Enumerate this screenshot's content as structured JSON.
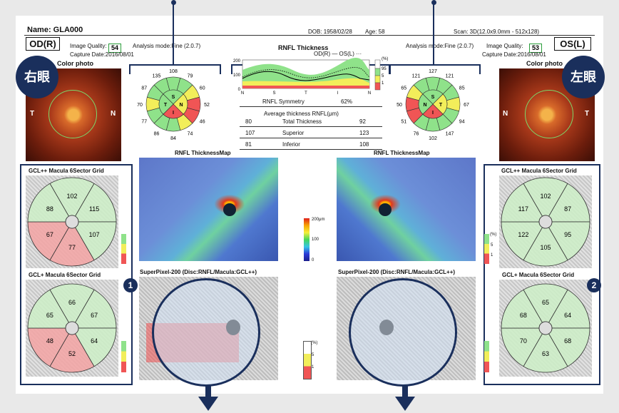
{
  "header": {
    "name": "Name: GLA000",
    "dob": "DOB: 1958/02/28",
    "age": "Age: 58",
    "scan": "Scan: 3D(12.0x9.0mm - 512x128)"
  },
  "right_eye": {
    "label": "OD(R)",
    "quality_label": "Image Quality:",
    "quality": "54",
    "analysis_mode": "Analysis mode:Fine (2.0.7)",
    "capture_date": "Capture Date:2016/08/01",
    "badge": "右眼",
    "photo_title": "Color photo",
    "photo_left": "T",
    "photo_right": "N"
  },
  "left_eye": {
    "label": "OS(L)",
    "quality_label": "Image Quality:",
    "quality": "53",
    "analysis_mode": "Analysis mode:Fine (2.0.7)",
    "capture_date": "Capture Date:2016/08/01",
    "badge": "左眼",
    "photo_title": "Color photo",
    "photo_left": "N",
    "photo_right": "T"
  },
  "clock_od": {
    "outer": [
      "108",
      "79",
      "60",
      "52",
      "46",
      "74",
      "84",
      "86",
      "77",
      "70",
      "87",
      "135"
    ],
    "quads": [
      "S",
      "N",
      "I",
      "T"
    ]
  },
  "clock_os": {
    "outer": [
      "127",
      "121",
      "85",
      "67",
      "94",
      "147",
      "102",
      "76",
      "51",
      "50",
      "65",
      "121"
    ],
    "quads": [
      "S",
      "T",
      "I",
      "N"
    ]
  },
  "rnfl": {
    "title": "RNFL Thickness",
    "legend": "OD(R) —   OS(L) ···",
    "y_ticks": [
      "200",
      "100",
      "0"
    ],
    "x_ticks": [
      "N",
      "S",
      "T",
      "I",
      "N"
    ],
    "unit": "(%)",
    "scale": [
      "95",
      "5",
      "1"
    ],
    "symmetry_label": "RNFL Symmetry",
    "symmetry_value": "62%",
    "avg_title": "Average thickness RNFL(μm)",
    "rows": [
      {
        "od": "80",
        "label": "Total Thickness",
        "os": "92"
      },
      {
        "od": "107",
        "label": "Superior",
        "os": "123"
      },
      {
        "od": "81",
        "label": "Inferior",
        "os": "108"
      }
    ]
  },
  "maps": {
    "thickness_title": "RNFL ThicknessMap",
    "superpixel_title": "SuperPixel-200 (Disc:RNFL/Macula:GCL++)",
    "colorbar": [
      "200μm",
      "100",
      "0"
    ]
  },
  "gcl_od": {
    "title_pp": "GCL++ Macula 6Sector Grid",
    "pp": [
      "102",
      "115",
      "107",
      "77",
      "67",
      "88"
    ],
    "title_p": "GCL+ Macula 6Sector Grid",
    "p": [
      "66",
      "67",
      "64",
      "52",
      "48",
      "65"
    ]
  },
  "gcl_os": {
    "title_pp": "GCL++ Macula 6Sector Grid",
    "pp": [
      "102",
      "87",
      "95",
      "105",
      "122",
      "117"
    ],
    "title_p": "GCL+ Macula 6Sector Grid",
    "p": [
      "65",
      "64",
      "68",
      "63",
      "70",
      "68"
    ]
  },
  "legend_scale": {
    "unit": "(%)",
    "values": [
      "5",
      "1"
    ]
  },
  "spx_legend": {
    "unit": "(%)",
    "values": [
      "5",
      "1"
    ]
  },
  "annotations": {
    "one": "1",
    "two": "2"
  },
  "colors": {
    "navy": "#1a2f5c",
    "green": "#8fe28a",
    "yellow": "#f2ee5a",
    "red": "#f05555",
    "pink": "#f3a3a3",
    "lightgreen": "#cdeec7"
  }
}
